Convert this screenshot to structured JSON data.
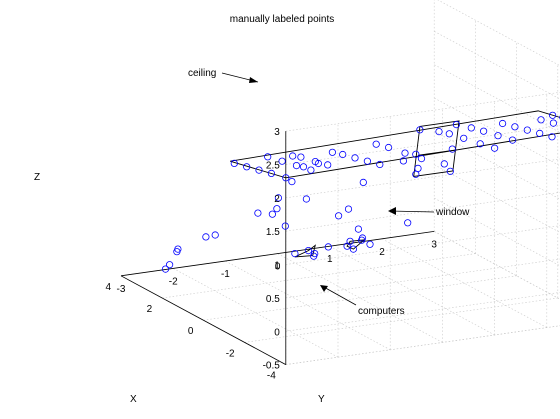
{
  "chart_data": {
    "type": "scatter",
    "title": "manually labeled points",
    "xlabel": "X",
    "ylabel": "Y",
    "zlabel": "Z",
    "xlim": [
      -4,
      4
    ],
    "ylim": [
      -3,
      3
    ],
    "zlim": [
      -0.5,
      3
    ],
    "xticks": [
      "-4",
      "-2",
      "0",
      "2",
      "4"
    ],
    "yticks": [
      "-3",
      "-2",
      "-1",
      "0",
      "1",
      "2",
      "3"
    ],
    "zticks": [
      "-0.5",
      "0",
      "0.5",
      "1",
      "1.5",
      "2",
      "2.5",
      "3"
    ],
    "grid": true,
    "marker_color": "#0000ff",
    "annotations": [
      {
        "text": "ceiling",
        "target": "ceiling plane"
      },
      {
        "text": "window",
        "target": "window rectangle"
      },
      {
        "text": "computers",
        "target": "computer boxes"
      }
    ],
    "points": [
      [
        -4.0,
        -3.0,
        2.3
      ],
      [
        -3.3,
        -3.0,
        2.25
      ],
      [
        -2.7,
        -3.0,
        2.2
      ],
      [
        -2.1,
        -3.0,
        2.15
      ],
      [
        -1.5,
        -3.0,
        2.1
      ],
      [
        -3.7,
        -2.4,
        2.3
      ],
      [
        -3.0,
        -2.4,
        2.25
      ],
      [
        -2.3,
        -2.4,
        2.2
      ],
      [
        -1.6,
        -2.4,
        2.15
      ],
      [
        -3.5,
        -2.0,
        2.3
      ],
      [
        -2.9,
        -2.0,
        2.25
      ],
      [
        -2.2,
        -2.0,
        2.2
      ],
      [
        -1.8,
        -2.0,
        2.15
      ],
      [
        -4.0,
        -1.2,
        2.3
      ],
      [
        -3.4,
        -1.2,
        2.25
      ],
      [
        -2.8,
        -1.2,
        2.2
      ],
      [
        -2.2,
        -1.2,
        2.15
      ],
      [
        -1.7,
        -1.2,
        2.1
      ],
      [
        -4.0,
        -0.4,
        2.3
      ],
      [
        -3.2,
        -0.4,
        2.25
      ],
      [
        -2.4,
        -0.4,
        2.2
      ],
      [
        -1.8,
        -0.4,
        2.15
      ],
      [
        -4.0,
        1.0,
        2.3
      ],
      [
        -3.3,
        1.0,
        2.25
      ],
      [
        -2.5,
        1.0,
        2.2
      ],
      [
        -1.8,
        1.0,
        2.15
      ],
      [
        -1.3,
        1.0,
        2.1
      ],
      [
        -3.6,
        1.5,
        2.3
      ],
      [
        -2.9,
        1.5,
        2.25
      ],
      [
        -2.2,
        1.5,
        2.2
      ],
      [
        -1.6,
        1.5,
        2.15
      ],
      [
        -4.0,
        2.1,
        2.35
      ],
      [
        -3.4,
        2.1,
        2.3
      ],
      [
        -2.8,
        2.1,
        2.25
      ],
      [
        -2.2,
        2.1,
        2.2
      ],
      [
        -1.6,
        2.1,
        2.15
      ],
      [
        -4.0,
        2.6,
        2.4
      ],
      [
        -3.4,
        2.6,
        2.35
      ],
      [
        -2.8,
        2.6,
        2.3
      ],
      [
        -2.2,
        2.6,
        2.25
      ],
      [
        -2.5,
        2.9,
        2.3
      ],
      [
        -3.0,
        2.9,
        2.3
      ],
      [
        -2.0,
        2.9,
        2.25
      ],
      [
        -1.0,
        -1.7,
        1.6
      ],
      [
        -0.6,
        -1.8,
        1.3
      ],
      [
        -1.2,
        -1.5,
        1.35
      ],
      [
        -0.3,
        -1.2,
        1.65
      ],
      [
        0.5,
        -0.6,
        1.5
      ],
      [
        0.2,
        -1.6,
        0.9
      ],
      [
        0.9,
        -1.6,
        0.8
      ],
      [
        1.5,
        -1.0,
        0.7
      ],
      [
        1.6,
        -0.8,
        0.4
      ],
      [
        -0.2,
        -0.3,
        0.9
      ],
      [
        0.6,
        0.3,
        1.1
      ],
      [
        1.8,
        0.3,
        0.4
      ],
      [
        2.2,
        1.7,
        1.0
      ],
      [
        2.0,
        1.9,
        0.9
      ],
      [
        2.5,
        1.9,
        0.0
      ],
      [
        1.2,
        -2.3,
        0.5
      ],
      [
        1.4,
        -2.4,
        0.45
      ],
      [
        2.0,
        -2.7,
        0.2
      ],
      [
        2.3,
        -2.6,
        0.1
      ],
      [
        -0.8,
        1.3,
        1.5
      ],
      [
        2.4,
        -2.7,
        -0.1
      ],
      [
        2.6,
        -2.7,
        -0.2
      ],
      [
        1.4,
        0.6,
        0.1
      ],
      [
        1.6,
        0.6,
        0.2
      ],
      [
        2.0,
        -0.2,
        -0.1
      ],
      [
        2.2,
        0.0,
        -0.2
      ],
      [
        2.4,
        -0.3,
        -0.2
      ],
      [
        2.3,
        0.3,
        -0.15
      ],
      [
        2.5,
        0.1,
        -0.3
      ],
      [
        2.0,
        0.6,
        -0.05
      ],
      [
        2.2,
        0.9,
        -0.1
      ],
      [
        2.4,
        0.7,
        -0.2
      ],
      [
        2.3,
        1.1,
        -0.2
      ],
      [
        2.6,
        0.9,
        -0.3
      ],
      [
        1.4,
        1.7,
        1.6
      ],
      [
        1.6,
        1.7,
        1.2
      ],
      [
        1.6,
        1.7,
        0.9
      ],
      [
        1.4,
        2.4,
        1.6
      ],
      [
        1.6,
        2.4,
        1.2
      ],
      [
        1.7,
        2.4,
        0.85
      ]
    ]
  }
}
